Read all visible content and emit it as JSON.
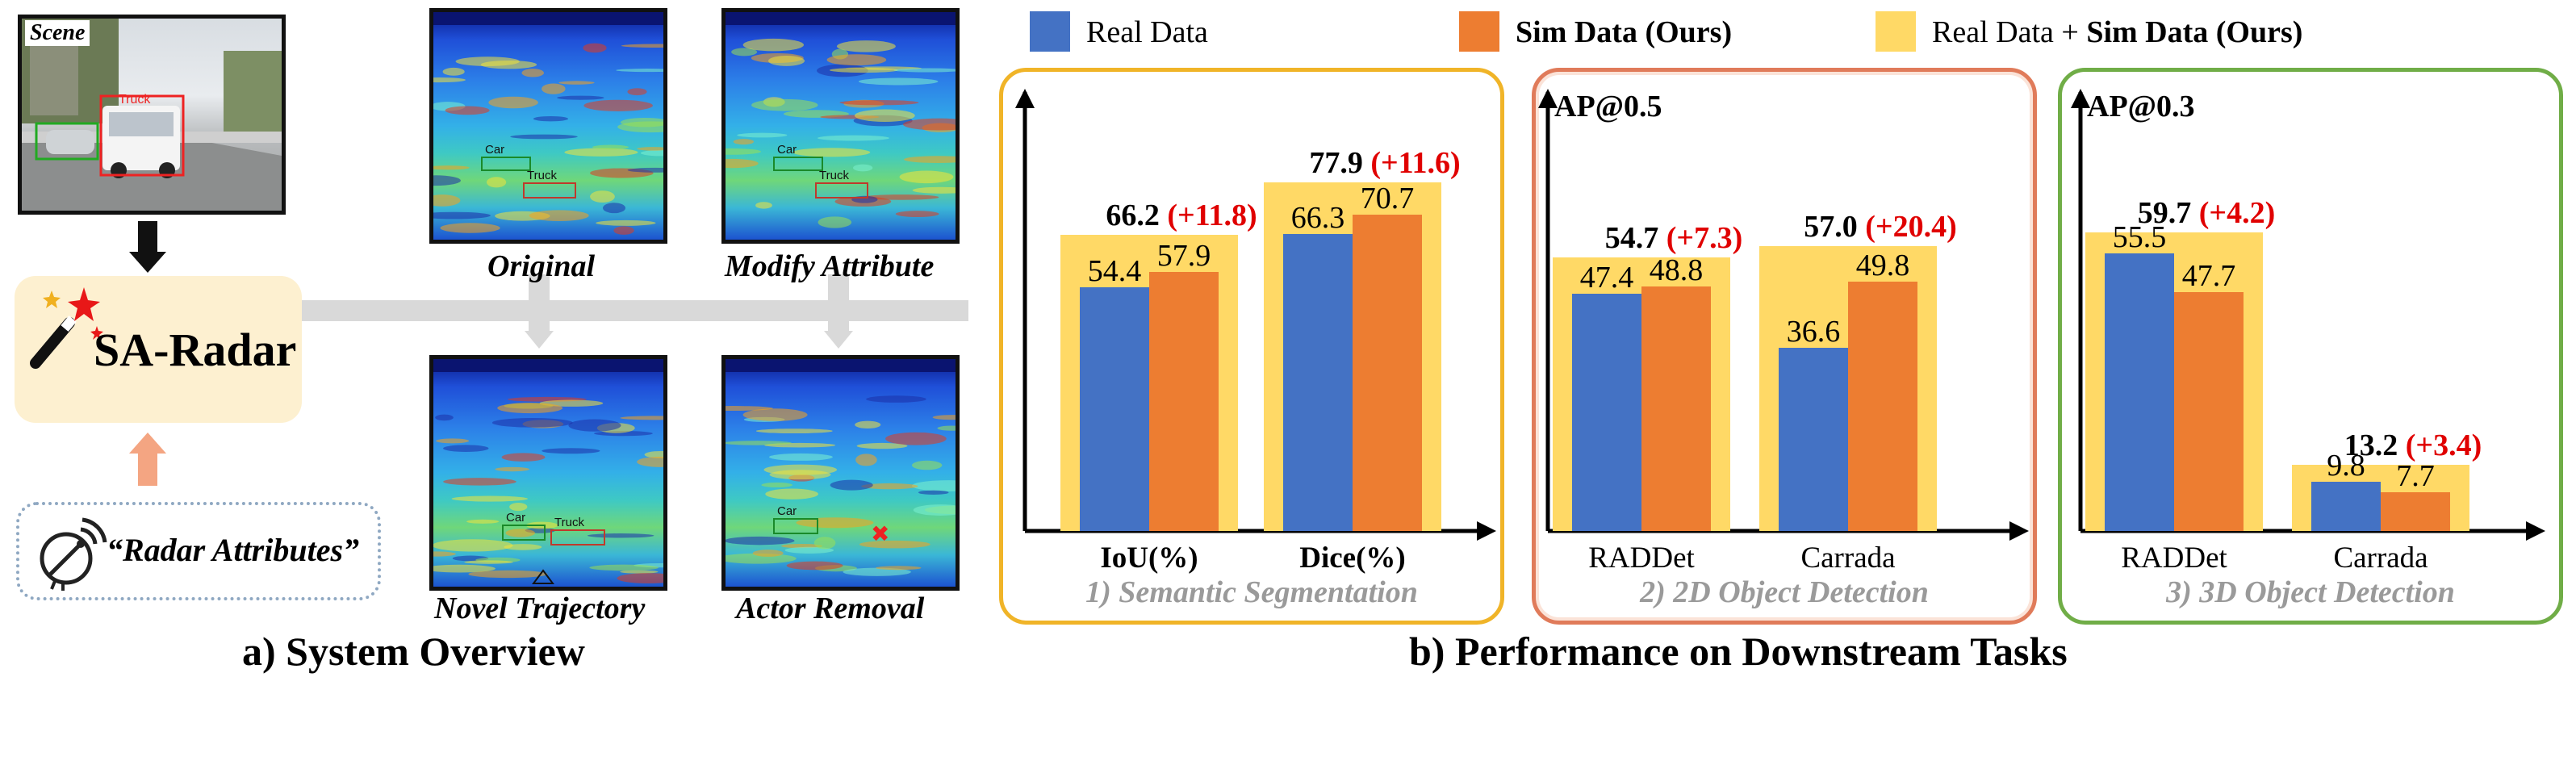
{
  "system": {
    "scene_label": "Scene",
    "truck_box_label": "Truck",
    "core_label": "SA-Radar",
    "radar_attributes_label": "“Radar Attributes”",
    "caption": "a) System Overview",
    "spectrograms": [
      {
        "label": "Original",
        "boxes": [
          "Car",
          "Truck"
        ]
      },
      {
        "label": "Modify Attribute",
        "boxes": [
          "Car",
          "Truck"
        ]
      },
      {
        "label": "Novel Trajectory",
        "boxes": [
          "Car",
          "Truck"
        ]
      },
      {
        "label": "Actor Removal",
        "boxes": [
          "Car"
        ]
      }
    ]
  },
  "legend": {
    "real": "Real Data",
    "sim": "Sim Data (Ours)",
    "combo_prefix": "Real Data + ",
    "combo_bold": "Sim Data (Ours)"
  },
  "colors": {
    "real": "#4472c4",
    "sim": "#ed7d31",
    "combo": "#ffd966",
    "panel1_border": "#f0b428",
    "panel2_border": "#e07b5a",
    "panel3_border": "#70ad47",
    "increase": "#e00000",
    "arrow_pink": "#f4a582"
  },
  "performance_caption": "b) Performance on Downstream Tasks",
  "chart_data": [
    {
      "type": "bar",
      "title": "1) Semantic Segmentation",
      "ylabel": "",
      "ylim": [
        0,
        100
      ],
      "categories": [
        "IoU(%)",
        "Dice(%)"
      ],
      "series": [
        {
          "name": "Real Data",
          "values": [
            54.4,
            66.3
          ]
        },
        {
          "name": "Sim Data (Ours)",
          "values": [
            57.9,
            70.7
          ]
        },
        {
          "name": "Real Data + Sim Data (Ours)",
          "values": [
            66.2,
            77.9
          ]
        }
      ],
      "increase_labels": [
        "(+11.8)",
        "(+11.6)"
      ]
    },
    {
      "type": "bar",
      "title": "2) 2D Object Detection",
      "ylabel": "AP@0.5",
      "ylim": [
        0,
        80
      ],
      "categories": [
        "RADDet",
        "Carrada"
      ],
      "series": [
        {
          "name": "Real Data",
          "values": [
            47.4,
            36.6
          ]
        },
        {
          "name": "Sim Data (Ours)",
          "values": [
            48.8,
            49.8
          ]
        },
        {
          "name": "Real Data + Sim Data (Ours)",
          "values": [
            54.7,
            57.0
          ]
        }
      ],
      "increase_labels": [
        "(+7.3)",
        "(+20.4)"
      ]
    },
    {
      "type": "bar",
      "title": "3) 3D Object Detection",
      "ylabel": "AP@0.3",
      "ylim": [
        0,
        80
      ],
      "categories": [
        "RADDet",
        "Carrada"
      ],
      "series": [
        {
          "name": "Real Data",
          "values": [
            55.5,
            9.8
          ]
        },
        {
          "name": "Sim Data (Ours)",
          "values": [
            47.7,
            7.7
          ]
        },
        {
          "name": "Real Data + Sim Data (Ours)",
          "values": [
            59.7,
            13.2
          ]
        }
      ],
      "increase_labels": [
        "(+4.2)",
        "(+3.4)"
      ]
    }
  ]
}
